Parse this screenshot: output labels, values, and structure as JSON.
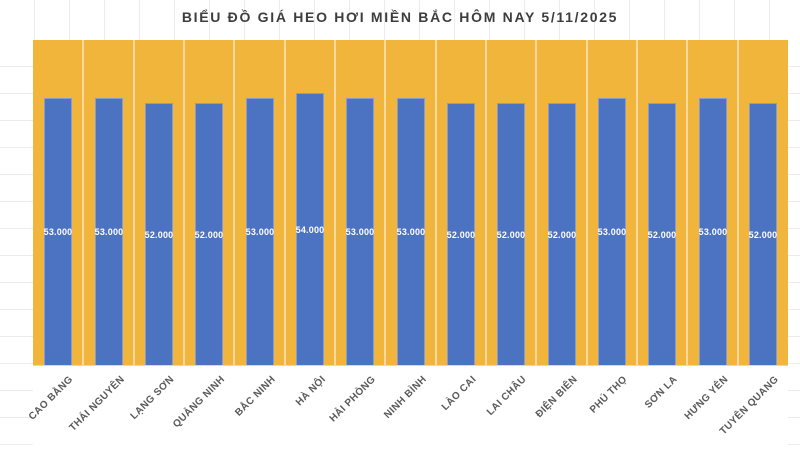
{
  "chart_data": {
    "type": "bar",
    "title": "BIỂU ĐỒ GIÁ HEO HƠI MIỀN BẮC HÔM NAY 5/11/2025",
    "categories": [
      "CAO BẰNG",
      "THÁI NGUYÊN",
      "LẠNG SƠN",
      "QUẢNG NINH",
      "BẮC NINH",
      "HÀ NỘI",
      "HẢI PHÒNG",
      "NINH BÌNH",
      "LÀO CAI",
      "LAI CHÂU",
      "ĐIỆN BIÊN",
      "PHÚ THỌ",
      "SƠN LA",
      "HƯNG YÊN",
      "TUYÊN QUANG"
    ],
    "values": [
      53000,
      53000,
      52000,
      52000,
      53000,
      54000,
      53000,
      53000,
      52000,
      52000,
      52000,
      53000,
      52000,
      53000,
      52000
    ],
    "value_labels": [
      "53.000",
      "53.000",
      "52.000",
      "52.000",
      "53.000",
      "54.000",
      "53.000",
      "53.000",
      "52.000",
      "52.000",
      "52.000",
      "53.000",
      "52.000",
      "53.000",
      "52.000"
    ],
    "xlabel": "",
    "ylabel": "",
    "ylim": [
      0,
      64500
    ],
    "legend": "none",
    "grid": "vertical white category separators on yellow plot background",
    "data_label_position": "center-of-bar",
    "x_label_rotation_deg": -45
  },
  "colors": {
    "page_background": "#ffffff",
    "plot_background": "#f1b53c",
    "bar_fill": "#4c72c2",
    "title_text": "#3d3d3d",
    "axis_label_text": "#595959",
    "value_label_text": "#ffffff",
    "category_separator": "rgba(255,255,255,0.5)",
    "axis_line": "#d8d8d8",
    "worksheet_gridline": "#ececec"
  }
}
